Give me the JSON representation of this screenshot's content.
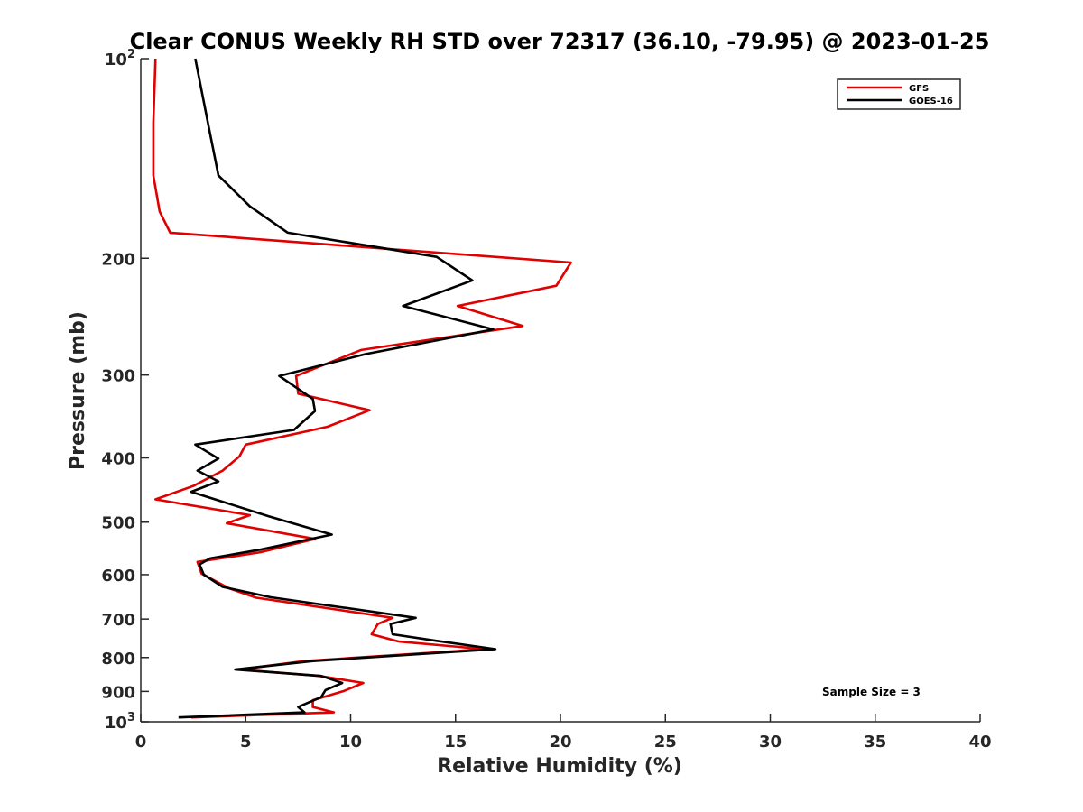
{
  "chart_data": {
    "type": "line",
    "title": "Clear CONUS Weekly RH STD over 72317 (36.10, -79.95) @ 2023-01-25",
    "xlabel": "Relative Humidity (%)",
    "ylabel": "Pressure (mb)",
    "xlim": [
      0,
      40
    ],
    "ylim": [
      100,
      1000
    ],
    "y_scale": "log",
    "y_reversed": true,
    "x_ticks": [
      0,
      5,
      10,
      15,
      20,
      25,
      30,
      35,
      40
    ],
    "y_ticks": [
      {
        "value": 100,
        "base": "10",
        "exp": "2"
      },
      {
        "value": 200,
        "label": "200"
      },
      {
        "value": 300,
        "label": "300"
      },
      {
        "value": 400,
        "label": "400"
      },
      {
        "value": 500,
        "label": "500"
      },
      {
        "value": 600,
        "label": "600"
      },
      {
        "value": 700,
        "label": "700"
      },
      {
        "value": 800,
        "label": "800"
      },
      {
        "value": 900,
        "label": "900"
      },
      {
        "value": 1000,
        "base": "10",
        "exp": "3"
      }
    ],
    "grid": false,
    "legend_position": "top-right",
    "annotation": "Sample Size = 3",
    "series": [
      {
        "name": "GFS",
        "color": "#e00000",
        "points": [
          [
            0.7,
            100
          ],
          [
            0.6,
            125
          ],
          [
            0.6,
            150
          ],
          [
            0.9,
            170
          ],
          [
            1.4,
            183
          ],
          [
            20.5,
            203
          ],
          [
            19.8,
            220
          ],
          [
            15.1,
            236
          ],
          [
            18.2,
            253
          ],
          [
            10.5,
            275
          ],
          [
            7.4,
            301
          ],
          [
            7.5,
            320
          ],
          [
            10.9,
            339
          ],
          [
            8.9,
            359
          ],
          [
            5.0,
            382
          ],
          [
            4.7,
            398
          ],
          [
            3.9,
            418
          ],
          [
            2.5,
            441
          ],
          [
            0.7,
            462
          ],
          [
            5.2,
            488
          ],
          [
            4.1,
            502
          ],
          [
            8.3,
            530
          ],
          [
            5.7,
            555
          ],
          [
            2.7,
            574
          ],
          [
            2.9,
            598
          ],
          [
            4.2,
            629
          ],
          [
            5.5,
            650
          ],
          [
            12.0,
            697
          ],
          [
            11.3,
            712
          ],
          [
            11.0,
            738
          ],
          [
            12.3,
            757
          ],
          [
            16.4,
            777
          ],
          [
            7.8,
            810
          ],
          [
            4.7,
            834
          ],
          [
            8.5,
            853
          ],
          [
            10.6,
            874
          ],
          [
            9.7,
            898
          ],
          [
            8.2,
            928
          ],
          [
            8.2,
            950
          ],
          [
            9.2,
            968
          ],
          [
            2.4,
            985
          ]
        ]
      },
      {
        "name": "GOES-16",
        "color": "#000000",
        "points": [
          [
            2.6,
            100
          ],
          [
            3.2,
            125
          ],
          [
            3.7,
            150
          ],
          [
            5.2,
            167
          ],
          [
            7.0,
            183
          ],
          [
            14.1,
            199
          ],
          [
            15.8,
            216
          ],
          [
            12.5,
            236
          ],
          [
            16.8,
            256
          ],
          [
            10.7,
            279
          ],
          [
            6.6,
            301
          ],
          [
            8.2,
            326
          ],
          [
            8.3,
            340
          ],
          [
            7.3,
            363
          ],
          [
            2.6,
            382
          ],
          [
            3.7,
            401
          ],
          [
            2.7,
            418
          ],
          [
            3.7,
            434
          ],
          [
            2.4,
            450
          ],
          [
            6.1,
            490
          ],
          [
            9.1,
            522
          ],
          [
            5.7,
            550
          ],
          [
            3.3,
            567
          ],
          [
            2.8,
            579
          ],
          [
            3.0,
            600
          ],
          [
            3.9,
            626
          ],
          [
            6.2,
            649
          ],
          [
            13.1,
            697
          ],
          [
            11.9,
            712
          ],
          [
            12.0,
            738
          ],
          [
            14.1,
            755
          ],
          [
            16.9,
            777
          ],
          [
            8.2,
            810
          ],
          [
            4.5,
            834
          ],
          [
            8.6,
            853
          ],
          [
            9.6,
            874
          ],
          [
            8.8,
            896
          ],
          [
            8.6,
            918
          ],
          [
            7.5,
            950
          ],
          [
            7.8,
            968
          ],
          [
            1.8,
            985
          ]
        ]
      }
    ]
  }
}
